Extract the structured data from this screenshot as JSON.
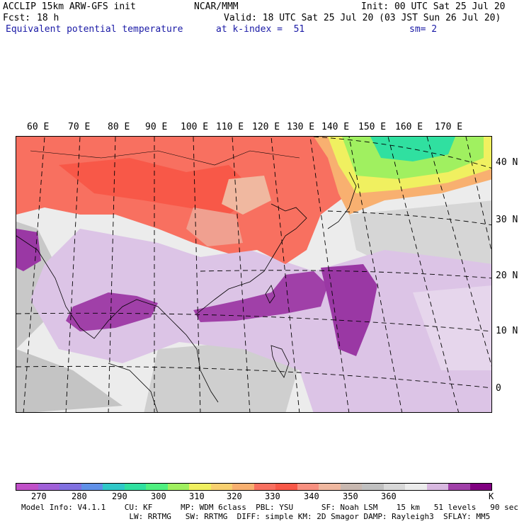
{
  "header": {
    "model": "ACCLIP 15km ARW-GFS init",
    "org": "NCAR/MMM",
    "init": "Init: 00 UTC Sat 25 Jul 20",
    "fcst_label": "Fcst:",
    "fcst_value": "18 h",
    "valid": "Valid: 18 UTC Sat 25 Jul 20 (03 JST Sun 26 Jul 20)",
    "field": "Equivalent potential temperature",
    "level": "at k-index =  51",
    "smooth": "sm= 2"
  },
  "map": {
    "lon_labels": [
      "60 E",
      "70 E",
      "80 E",
      "90 E",
      "100 E",
      "110 E",
      "120 E",
      "130 E",
      "140 E",
      "150 E",
      "160 E",
      "170 E"
    ],
    "lat_labels": [
      "40 N",
      "30 N",
      "20 N",
      "10 N",
      "0"
    ]
  },
  "colorbar": {
    "colors": [
      "#c050c8",
      "#a060d8",
      "#8070e0",
      "#6090e8",
      "#30c8c8",
      "#30e0a0",
      "#50f080",
      "#a0f060",
      "#f0f060",
      "#f8d070",
      "#f8b070",
      "#f87060",
      "#f85848",
      "#f89080",
      "#f0b8a0",
      "#c8b8b0",
      "#c0c0c0",
      "#d8d8d8",
      "#ececec",
      "#d8b8e0",
      "#a040a8",
      "#800080"
    ],
    "tick_labels": [
      "270",
      "280",
      "290",
      "300",
      "310",
      "320",
      "330",
      "340",
      "350",
      "360"
    ],
    "unit": "K"
  },
  "footer": {
    "line1": "Model Info: V4.1.1    CU: KF      MP: WDM 6class  PBL: YSU      SF: Noah LSM    15 km   51 levels   90 sec",
    "line2": "                       LW: RRTMG   SW: RRTMG  DIFF: simple KM: 2D Smagor DAMP: Rayleigh3  SFLAY: MM5"
  }
}
